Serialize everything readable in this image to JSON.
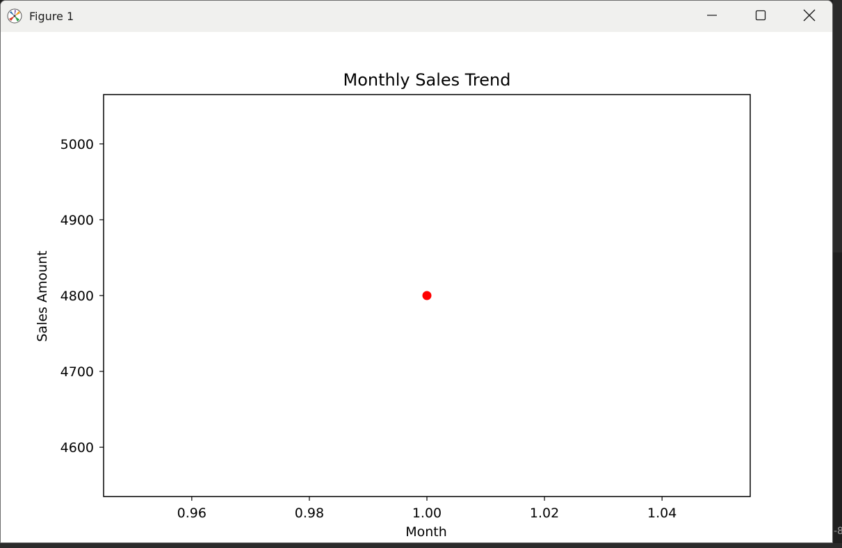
{
  "window": {
    "title": "Figure 1",
    "app_icon": "matplotlib-icon",
    "controls": {
      "minimize_icon": "minimize-icon",
      "maximize_icon": "maximize-icon",
      "close_icon": "close-icon"
    }
  },
  "colors": {
    "titlebar_bg": "#f0f0ee",
    "plot_bg": "#ffffff",
    "marker": "#ff0000",
    "axis": "#000000"
  },
  "chart_data": {
    "type": "scatter",
    "title": "Monthly Sales Trend",
    "xlabel": "Month",
    "ylabel": "Sales Amount",
    "x": [
      1
    ],
    "y": [
      4800
    ],
    "xlim": [
      0.945,
      1.055
    ],
    "ylim": [
      4535,
      5065
    ],
    "xticks": [
      0.96,
      0.98,
      1.0,
      1.02,
      1.04
    ],
    "xtick_labels": [
      "0.96",
      "0.98",
      "1.00",
      "1.02",
      "1.04"
    ],
    "yticks": [
      4600,
      4700,
      4800,
      4900,
      5000
    ],
    "ytick_labels": [
      "4600",
      "4700",
      "4800",
      "4900",
      "5000"
    ],
    "marker_color": "#ff0000",
    "grid": false,
    "legend": false
  },
  "edge_text": "-8"
}
